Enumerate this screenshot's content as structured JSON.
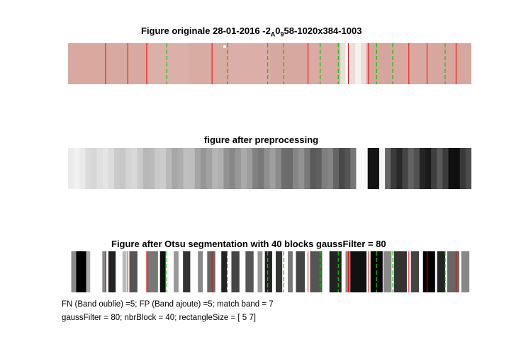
{
  "panel1": {
    "title_main": "Figure originale 28-01-2016 -2",
    "title_sub1": "A",
    "title_mid": "0",
    "title_sub2": "9",
    "title_end": "58-1020x384-1003"
  },
  "panel2": {
    "title": "figure after preprocessing"
  },
  "panel3": {
    "title": "Figure after Otsu segmentation with 40 blocks gaussFilter = 80"
  },
  "footer": {
    "line1": "FN (Band oublie) =5; FP (Band ajoute) =5; match band = 7",
    "line2": "gaussFilter = 80; nbrBlock = 40; rectangleSize = [ 5  7]"
  },
  "colors": {
    "red_line": "#ff0000",
    "green_dash": "#00cc00",
    "strip_bg": "#d9aba3"
  },
  "band_positions_x": {
    "red": [
      0.093,
      0.148,
      0.195,
      0.357,
      0.595,
      0.695,
      0.745,
      0.845,
      0.89,
      0.962
    ],
    "green": [
      0.245,
      0.395,
      0.495,
      0.535,
      0.625,
      0.67,
      0.765,
      0.805,
      0.935
    ]
  }
}
